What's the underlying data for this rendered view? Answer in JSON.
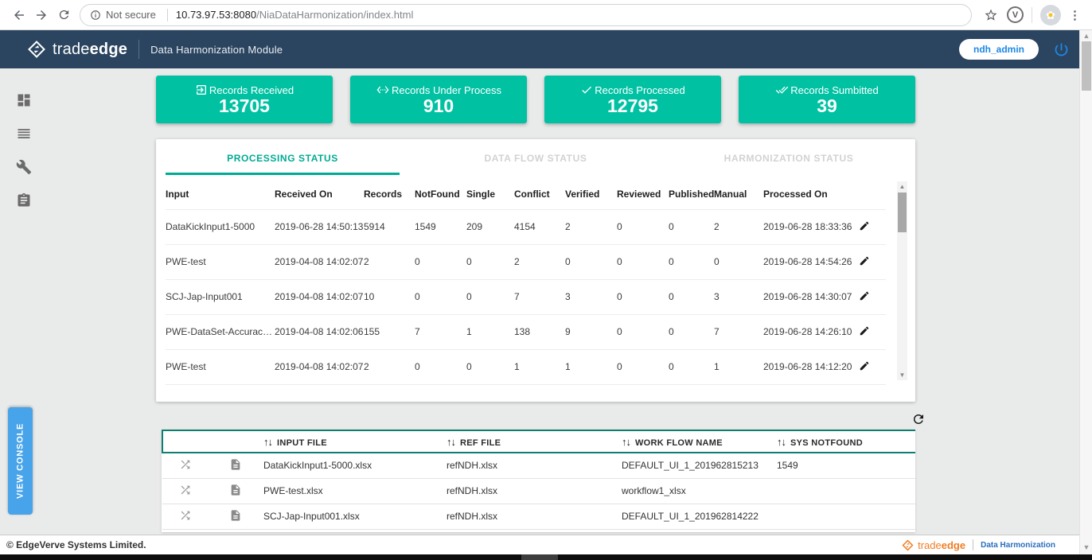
{
  "browser": {
    "security_label": "Not secure",
    "url_host": "10.73.97.53:8080",
    "url_path": "/NiaDataHarmonization/index.html",
    "extension_badge": "V"
  },
  "header": {
    "brand_trade": "trade",
    "brand_edge": "edge",
    "module_title": "Data Harmonization Module",
    "user_button": "ndh_admin"
  },
  "cards": [
    {
      "icon": "exit-to-app",
      "label": "Records Received",
      "value": "13705"
    },
    {
      "icon": "settings-ethernet",
      "label": "Records Under Process",
      "value": "910"
    },
    {
      "icon": "check",
      "label": "Records Processed",
      "value": "12795"
    },
    {
      "icon": "done-all",
      "label": "Records Sumbitted",
      "value": "39"
    }
  ],
  "tabs": [
    {
      "label": "PROCESSING STATUS",
      "active": true
    },
    {
      "label": "DATA FLOW STATUS",
      "active": false
    },
    {
      "label": "HARMONIZATION STATUS",
      "active": false
    }
  ],
  "processing_table": {
    "columns": [
      "Input",
      "Received On",
      "Records",
      "NotFound",
      "Single",
      "Conflict",
      "Verified",
      "Reviewed",
      "Published",
      "Manual",
      "Processed On"
    ],
    "rows": [
      [
        "DataKickInput1-5000",
        "2019-06-28 14:50:13",
        "5914",
        "1549",
        "209",
        "4154",
        "2",
        "0",
        "0",
        "2",
        "2019-06-28 18:33:36"
      ],
      [
        "PWE-test",
        "2019-04-08 14:02:07",
        "2",
        "0",
        "0",
        "2",
        "0",
        "0",
        "0",
        "0",
        "2019-06-28 14:54:26"
      ],
      [
        "SCJ-Jap-Input001",
        "2019-04-08 14:02:07",
        "10",
        "0",
        "0",
        "7",
        "3",
        "0",
        "0",
        "3",
        "2019-06-28 14:30:07"
      ],
      [
        "PWE-DataSet-Accuracyl...",
        "2019-04-08 14:02:06",
        "155",
        "7",
        "1",
        "138",
        "9",
        "0",
        "0",
        "7",
        "2019-06-28 14:26:10"
      ],
      [
        "PWE-test",
        "2019-04-08 14:02:07",
        "2",
        "0",
        "0",
        "1",
        "1",
        "0",
        "0",
        "1",
        "2019-06-28 14:12:20"
      ]
    ]
  },
  "files_table": {
    "sort_arrows": "↑↓",
    "columns": [
      "INPUT FILE",
      "REF FILE",
      "WORK FLOW NAME",
      "SYS NOTFOUND"
    ],
    "rows": [
      {
        "input_file": "DataKickInput1-5000.xlsx",
        "ref_file": "refNDH.xlsx",
        "workflow": "DEFAULT_UI_1_201962815213",
        "sys_notfound": "1549"
      },
      {
        "input_file": "PWE-test.xlsx",
        "ref_file": "refNDH.xlsx",
        "workflow": "workflow1_xlsx",
        "sys_notfound": ""
      },
      {
        "input_file": "SCJ-Jap-Input001.xlsx",
        "ref_file": "refNDH.xlsx",
        "workflow": "DEFAULT_UI_1_201962814222",
        "sys_notfound": ""
      }
    ]
  },
  "sidebar": {
    "console_button": "VIEW CONSOLE"
  },
  "footer": {
    "copyright": "© EdgeVerve Systems Limited.",
    "brand_trade": "trade",
    "brand_edge": "edge",
    "brand_module": "Data Harmonization"
  },
  "colors": {
    "header_navy": "#2b4560",
    "card_teal": "#00c2a3",
    "tab_active_teal": "#00ab93",
    "files_table_border": "#0e7e70",
    "console_blue": "#47a4ea",
    "accent_blue": "#1e88e5",
    "brand_orange": "#f07d23",
    "footer_link_blue": "#2a6fbd"
  }
}
